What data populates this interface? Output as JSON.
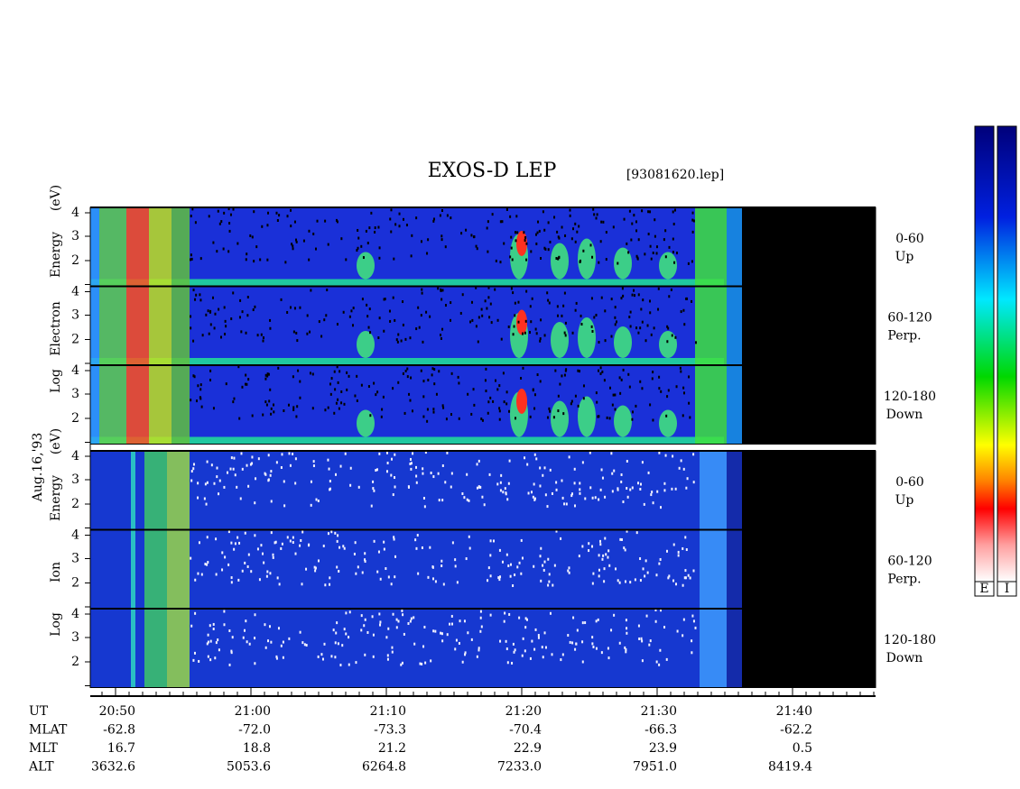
{
  "title": "EXOS-D LEP",
  "file": "[93081620.lep]",
  "date": "Aug.16,'93",
  "electron_axis_label": [
    "Log",
    "Electron",
    "Energy",
    "(eV)"
  ],
  "ion_axis_label": [
    "Log",
    "Ion",
    "Energy",
    "(eV)"
  ],
  "yticks": [
    "2",
    "3",
    "4"
  ],
  "pitch_panels": [
    {
      "range": "0-60",
      "dir": "Up"
    },
    {
      "range": "60-120",
      "dir": "Perp."
    },
    {
      "range": "120-180",
      "dir": "Down"
    }
  ],
  "orbit_rows": [
    {
      "name": "UT",
      "values": [
        "20:50",
        "21:00",
        "21:10",
        "21:20",
        "21:30",
        "21:40"
      ]
    },
    {
      "name": "MLAT",
      "values": [
        "-62.8",
        "-72.0",
        "-73.3",
        "-70.4",
        "-66.3",
        "-62.2"
      ]
    },
    {
      "name": "MLT",
      "values": [
        "16.7",
        "18.8",
        "21.2",
        "22.9",
        "23.9",
        "0.5"
      ]
    },
    {
      "name": "ALT",
      "values": [
        "3632.6",
        "5053.6",
        "6264.8",
        "7233.0",
        "7951.0",
        "8419.4"
      ]
    }
  ],
  "colorbars": [
    "E",
    "I"
  ]
}
